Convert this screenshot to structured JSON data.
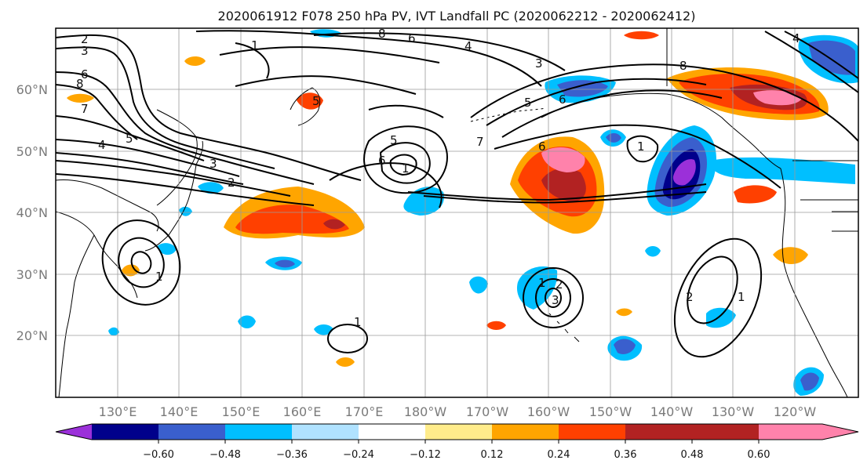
{
  "title": "2020061912 F078 250 hPa PV, IVT Landfall PC (2020062212 - 2020062412)",
  "longitude_labels": [
    "130°E",
    "140°E",
    "150°E",
    "160°E",
    "170°E",
    "180°W",
    "170°W",
    "160°W",
    "150°W",
    "140°W",
    "130°W",
    "120°W"
  ],
  "latitude_labels": [
    "20°N",
    "30°N",
    "40°N",
    "50°N",
    "60°N"
  ],
  "colorbar": {
    "tick_labels": [
      "−0.60",
      "−0.48",
      "−0.36",
      "−0.24",
      "−0.12",
      "0.12",
      "0.24",
      "0.36",
      "0.48",
      "0.60"
    ],
    "colors": [
      "#9b30d9",
      "#00008b",
      "#3a5fcd",
      "#00bfff",
      "#b0e2ff",
      "#ffffff",
      "#ffec8b",
      "#ffa500",
      "#ff4000",
      "#b22222",
      "#ff82ab"
    ]
  },
  "pv_contour_labels": [
    "2",
    "3",
    "6",
    "8",
    "7",
    "4",
    "5",
    "3",
    "2",
    "1",
    "8",
    "6",
    "4",
    "5",
    "3",
    "7",
    "6",
    "5",
    "6",
    "1",
    "8",
    "5",
    "4",
    "6",
    "1",
    "1",
    "1",
    "2",
    "1",
    "2",
    "3",
    "1"
  ]
}
